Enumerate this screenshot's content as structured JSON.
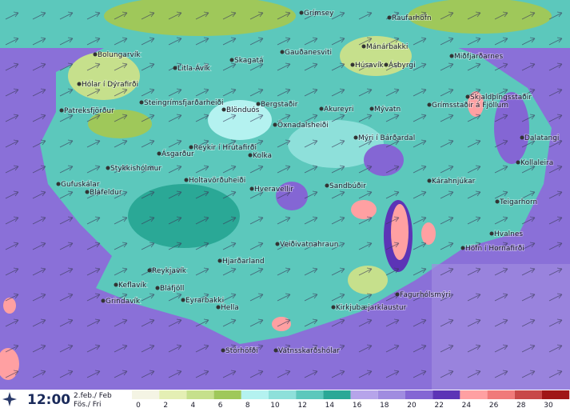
{
  "header": {
    "time": "12:00",
    "date": "2.feb./ Feb",
    "day": "Fös./ Fri"
  },
  "legend": {
    "stops": [
      {
        "value": 0,
        "color": "#f4f4e4"
      },
      {
        "value": 2,
        "color": "#e4efb4"
      },
      {
        "value": 4,
        "color": "#c6e08c"
      },
      {
        "value": 6,
        "color": "#9fc85a"
      },
      {
        "value": 8,
        "color": "#b4f2f0"
      },
      {
        "value": 10,
        "color": "#8ee0da"
      },
      {
        "value": 12,
        "color": "#5cc8bc"
      },
      {
        "value": 14,
        "color": "#2aa896"
      },
      {
        "value": 16,
        "color": "#b6a4ea"
      },
      {
        "value": 18,
        "color": "#a08ce0"
      },
      {
        "value": 20,
        "color": "#8466d4"
      },
      {
        "value": 22,
        "color": "#5c34b6"
      },
      {
        "value": 24,
        "color": "#ffa0a2"
      },
      {
        "value": 26,
        "color": "#f07a7a"
      },
      {
        "value": 28,
        "color": "#c84848"
      },
      {
        "value": 30,
        "color": "#a01616"
      }
    ]
  },
  "places": [
    "Grímsey",
    "Raufarhöfn",
    "Gauðanesviti",
    "Mánárbakki",
    "Miðfjarðarnes",
    "Húsavík",
    "Ásbyrgi",
    "Bolungarvík",
    "Litla-Ávík",
    "Skagatá",
    "Hólar í Dýrafirði",
    "Patreksfjörður",
    "Skjaldþingsstaðir",
    "Grímsstaðir á Fjöllum",
    "Steingrímsfjarðarheiði",
    "Blönduós",
    "Bergstaðir",
    "Akureyri",
    "Mývatn",
    "Öxnadalsheiði",
    "Mýri í Bárðardal",
    "Dalatangi",
    "Kollaleira",
    "Ásgarður",
    "Reykir í Hrútafirði",
    "Kolka",
    "Stykkishólmur",
    "Holtavörðuheiði",
    "Gufuskálar",
    "Bláfeldur",
    "Hveravellir",
    "Sandbúðir",
    "Kárahnjúkar",
    "Teigarhorn",
    "Hvalnes",
    "Höfn í Hornafirði",
    "Veiðivatnahraun",
    "Hjarðarland",
    "Reykjavík",
    "Keflavík",
    "Bláfjöll",
    "Grindavík",
    "Eyrarbakki",
    "Hella",
    "Fagurhólsmýri",
    "Kirkjubæjarklaustur",
    "Vatnsskarðshólar",
    "Stórhöfði"
  ]
}
